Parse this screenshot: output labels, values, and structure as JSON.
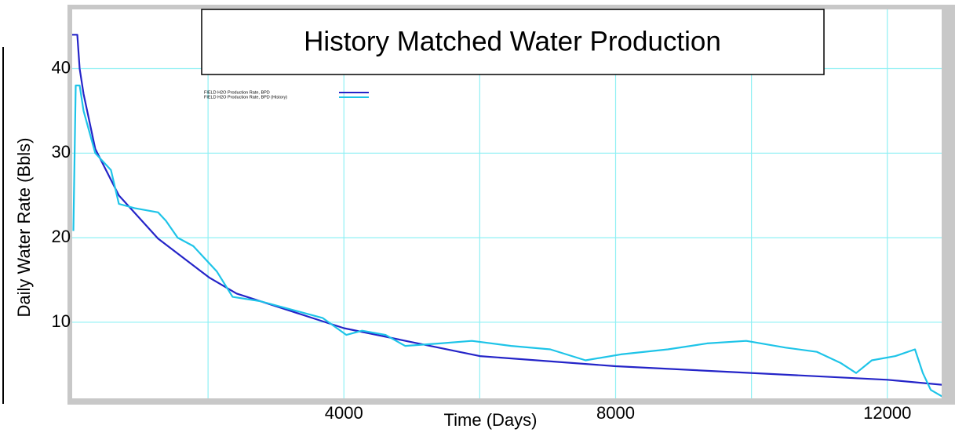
{
  "chart_data": {
    "type": "line",
    "title": "History Matched Water Production",
    "xlabel": "Time (Days)",
    "ylabel": "Daily Water Rate (Bbls)",
    "xlim": [
      0,
      12800
    ],
    "ylim": [
      1,
      47
    ],
    "xticks": [
      4000,
      8000,
      12000
    ],
    "xgrid_minor": [
      2000,
      6000,
      10000
    ],
    "yticks": [
      10,
      20,
      30,
      40
    ],
    "grid": true,
    "grid_color": "#8ff0f4",
    "legend": "upper left",
    "series": [
      {
        "name": "FIELD H2O Production Rate, BPD",
        "color": "#2424c8",
        "x": [
          0,
          75,
          110,
          167,
          340,
          687,
          1264,
          2015,
          2419,
          4000,
          6000,
          8000,
          12000,
          12812
        ],
        "values": [
          44,
          44,
          40,
          37,
          30.5,
          25,
          19.9,
          15.3,
          13.4,
          9.3,
          6.0,
          4.8,
          3.2,
          2.6
        ]
      },
      {
        "name": "FIELD H2O Production Rate, BPD (History)",
        "color": "#1ec4e8",
        "x": [
          17,
          52,
          110,
          167,
          340,
          571,
          687,
          918,
          1264,
          1380,
          1553,
          1784,
          2130,
          2361,
          2766,
          3228,
          3690,
          4036,
          4267,
          4613,
          4902,
          5422,
          5884,
          6461,
          7038,
          7558,
          8077,
          8770,
          9347,
          9924,
          10502,
          10964,
          11310,
          11541,
          11772,
          12119,
          12407,
          12523,
          12639,
          12812
        ],
        "values": [
          20.8,
          38,
          38,
          35,
          30,
          28,
          24,
          23.5,
          23,
          22,
          20,
          19,
          16,
          13,
          12.5,
          11.5,
          10.5,
          8.5,
          9,
          8.5,
          7.2,
          7.5,
          7.8,
          7.2,
          6.8,
          5.5,
          6.2,
          6.8,
          7.5,
          7.8,
          7.0,
          6.5,
          5.2,
          4.0,
          5.5,
          6,
          6.8,
          4,
          2,
          1.2
        ]
      }
    ]
  }
}
